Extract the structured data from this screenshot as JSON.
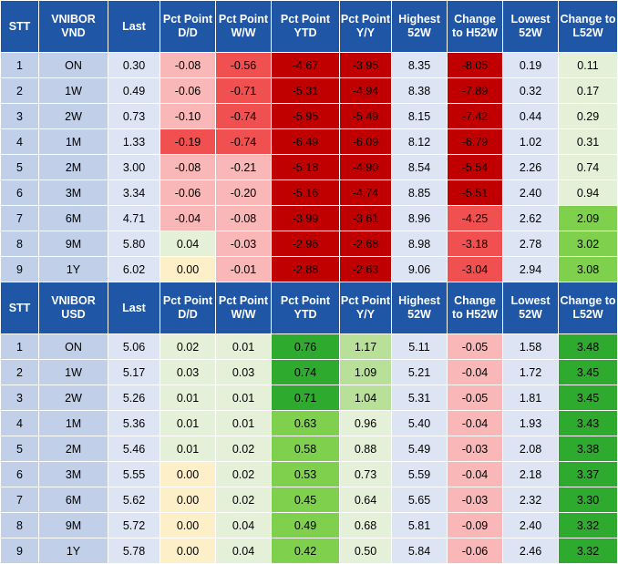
{
  "colors": {
    "header_bg": "#1f56a6",
    "label_bg": "#c2cfe9",
    "neutral_bg": "#dde4f3",
    "red_dark": "#c00000",
    "red_mid": "#f05050",
    "red_light": "#f9b7b7",
    "green_dark": "#2eaa2e",
    "green_mid": "#7fd04d",
    "green_light": "#b8e098",
    "green_pale": "#e4f1d8",
    "yellow_pale": "#fdf0c8"
  },
  "tables": [
    {
      "headers": [
        "STT",
        "VNIBOR VND",
        "Last",
        "Pct Point D/D",
        "Pct Point W/W",
        "Pct Point YTD",
        "Pct Point Y/Y",
        "Highest 52W",
        "Change to H52W",
        "Lowest 52W",
        "Change to L52W"
      ],
      "rows": [
        {
          "stt": "1",
          "tenor": "ON",
          "last": "0.30",
          "dd": "-0.08",
          "ww": "-0.56",
          "ytd": "-4.67",
          "yy": "-3.95",
          "h52": "8.35",
          "ch52": "-8.05",
          "l52": "0.19",
          "cl52": "0.11"
        },
        {
          "stt": "2",
          "tenor": "1W",
          "last": "0.49",
          "dd": "-0.06",
          "ww": "-0.71",
          "ytd": "-5.31",
          "yy": "-4.94",
          "h52": "8.38",
          "ch52": "-7.89",
          "l52": "0.32",
          "cl52": "0.17"
        },
        {
          "stt": "3",
          "tenor": "2W",
          "last": "0.73",
          "dd": "-0.10",
          "ww": "-0.74",
          "ytd": "-5.95",
          "yy": "-5.49",
          "h52": "8.15",
          "ch52": "-7.42",
          "l52": "0.44",
          "cl52": "0.29"
        },
        {
          "stt": "4",
          "tenor": "1M",
          "last": "1.33",
          "dd": "-0.19",
          "ww": "-0.74",
          "ytd": "-6.49",
          "yy": "-6.09",
          "h52": "8.12",
          "ch52": "-6.79",
          "l52": "1.02",
          "cl52": "0.31"
        },
        {
          "stt": "5",
          "tenor": "2M",
          "last": "3.00",
          "dd": "-0.08",
          "ww": "-0.21",
          "ytd": "-5.18",
          "yy": "-4.90",
          "h52": "8.54",
          "ch52": "-5.54",
          "l52": "2.26",
          "cl52": "0.74"
        },
        {
          "stt": "6",
          "tenor": "3M",
          "last": "3.34",
          "dd": "-0.06",
          "ww": "-0.20",
          "ytd": "-5.16",
          "yy": "-4.74",
          "h52": "8.85",
          "ch52": "-5.51",
          "l52": "2.40",
          "cl52": "0.94"
        },
        {
          "stt": "7",
          "tenor": "6M",
          "last": "4.71",
          "dd": "-0.04",
          "ww": "-0.08",
          "ytd": "-3.99",
          "yy": "-3.61",
          "h52": "8.96",
          "ch52": "-4.25",
          "l52": "2.62",
          "cl52": "2.09"
        },
        {
          "stt": "8",
          "tenor": "9M",
          "last": "5.80",
          "dd": "0.04",
          "ww": "-0.03",
          "ytd": "-2.96",
          "yy": "-2.68",
          "h52": "8.98",
          "ch52": "-3.18",
          "l52": "2.78",
          "cl52": "3.02"
        },
        {
          "stt": "9",
          "tenor": "1Y",
          "last": "6.02",
          "dd": "0.00",
          "ww": "-0.01",
          "ytd": "-2.88",
          "yy": "-2.63",
          "h52": "9.06",
          "ch52": "-3.04",
          "l52": "2.94",
          "cl52": "3.08"
        }
      ],
      "shading": [
        {
          "dd": "red_light",
          "ww": "red_mid",
          "ytd": "red_dark",
          "yy": "red_dark",
          "ch52": "red_dark",
          "cl52": "green_pale"
        },
        {
          "dd": "red_light",
          "ww": "red_mid",
          "ytd": "red_dark",
          "yy": "red_dark",
          "ch52": "red_dark",
          "cl52": "green_pale"
        },
        {
          "dd": "red_light",
          "ww": "red_mid",
          "ytd": "red_dark",
          "yy": "red_dark",
          "ch52": "red_dark",
          "cl52": "green_pale"
        },
        {
          "dd": "red_mid",
          "ww": "red_mid",
          "ytd": "red_dark",
          "yy": "red_dark",
          "ch52": "red_dark",
          "cl52": "green_pale"
        },
        {
          "dd": "red_light",
          "ww": "red_light",
          "ytd": "red_dark",
          "yy": "red_dark",
          "ch52": "red_dark",
          "cl52": "green_pale"
        },
        {
          "dd": "red_light",
          "ww": "red_light",
          "ytd": "red_dark",
          "yy": "red_dark",
          "ch52": "red_dark",
          "cl52": "green_pale"
        },
        {
          "dd": "red_light",
          "ww": "red_light",
          "ytd": "red_dark",
          "yy": "red_dark",
          "ch52": "red_mid",
          "cl52": "green_mid"
        },
        {
          "dd": "green_pale",
          "ww": "red_light",
          "ytd": "red_dark",
          "yy": "red_dark",
          "ch52": "red_mid",
          "cl52": "green_mid"
        },
        {
          "dd": "yellow_pale",
          "ww": "red_light",
          "ytd": "red_dark",
          "yy": "red_dark",
          "ch52": "red_mid",
          "cl52": "green_mid"
        }
      ]
    },
    {
      "headers": [
        "STT",
        "VNIBOR USD",
        "Last",
        "Pct Point D/D",
        "Pct Point W/W",
        "Pct Point YTD",
        "Pct Point Y/Y",
        "Highest 52W",
        "Change to H52W",
        "Lowest 52W",
        "Change to L52W"
      ],
      "rows": [
        {
          "stt": "1",
          "tenor": "ON",
          "last": "5.06",
          "dd": "0.02",
          "ww": "0.01",
          "ytd": "0.76",
          "yy": "1.17",
          "h52": "5.11",
          "ch52": "-0.05",
          "l52": "1.58",
          "cl52": "3.48"
        },
        {
          "stt": "2",
          "tenor": "1W",
          "last": "5.17",
          "dd": "0.03",
          "ww": "0.03",
          "ytd": "0.74",
          "yy": "1.09",
          "h52": "5.21",
          "ch52": "-0.04",
          "l52": "1.72",
          "cl52": "3.45"
        },
        {
          "stt": "3",
          "tenor": "2W",
          "last": "5.26",
          "dd": "0.01",
          "ww": "0.01",
          "ytd": "0.71",
          "yy": "1.04",
          "h52": "5.31",
          "ch52": "-0.05",
          "l52": "1.81",
          "cl52": "3.45"
        },
        {
          "stt": "4",
          "tenor": "1M",
          "last": "5.36",
          "dd": "0.01",
          "ww": "0.01",
          "ytd": "0.63",
          "yy": "0.96",
          "h52": "5.40",
          "ch52": "-0.04",
          "l52": "1.93",
          "cl52": "3.43"
        },
        {
          "stt": "5",
          "tenor": "2M",
          "last": "5.46",
          "dd": "0.01",
          "ww": "0.02",
          "ytd": "0.58",
          "yy": "0.88",
          "h52": "5.49",
          "ch52": "-0.03",
          "l52": "2.08",
          "cl52": "3.38"
        },
        {
          "stt": "6",
          "tenor": "3M",
          "last": "5.55",
          "dd": "0.00",
          "ww": "0.02",
          "ytd": "0.53",
          "yy": "0.73",
          "h52": "5.59",
          "ch52": "-0.04",
          "l52": "2.18",
          "cl52": "3.37"
        },
        {
          "stt": "7",
          "tenor": "6M",
          "last": "5.62",
          "dd": "0.00",
          "ww": "0.02",
          "ytd": "0.45",
          "yy": "0.64",
          "h52": "5.65",
          "ch52": "-0.03",
          "l52": "2.32",
          "cl52": "3.30"
        },
        {
          "stt": "8",
          "tenor": "9M",
          "last": "5.72",
          "dd": "0.00",
          "ww": "0.04",
          "ytd": "0.49",
          "yy": "0.68",
          "h52": "5.81",
          "ch52": "-0.09",
          "l52": "2.40",
          "cl52": "3.32"
        },
        {
          "stt": "9",
          "tenor": "1Y",
          "last": "5.78",
          "dd": "0.00",
          "ww": "0.04",
          "ytd": "0.42",
          "yy": "0.50",
          "h52": "5.84",
          "ch52": "-0.06",
          "l52": "2.46",
          "cl52": "3.32"
        }
      ],
      "shading": [
        {
          "dd": "green_pale",
          "ww": "green_pale",
          "ytd": "green_dark",
          "yy": "green_light",
          "ch52": "red_light",
          "cl52": "green_dark"
        },
        {
          "dd": "green_pale",
          "ww": "green_pale",
          "ytd": "green_dark",
          "yy": "green_light",
          "ch52": "red_light",
          "cl52": "green_dark"
        },
        {
          "dd": "green_pale",
          "ww": "green_pale",
          "ytd": "green_dark",
          "yy": "green_light",
          "ch52": "red_light",
          "cl52": "green_dark"
        },
        {
          "dd": "green_pale",
          "ww": "green_pale",
          "ytd": "green_mid",
          "yy": "green_pale",
          "ch52": "red_light",
          "cl52": "green_dark"
        },
        {
          "dd": "green_pale",
          "ww": "green_pale",
          "ytd": "green_mid",
          "yy": "green_pale",
          "ch52": "red_light",
          "cl52": "green_dark"
        },
        {
          "dd": "yellow_pale",
          "ww": "green_pale",
          "ytd": "green_mid",
          "yy": "green_pale",
          "ch52": "red_light",
          "cl52": "green_dark"
        },
        {
          "dd": "yellow_pale",
          "ww": "green_pale",
          "ytd": "green_mid",
          "yy": "green_pale",
          "ch52": "red_light",
          "cl52": "green_dark"
        },
        {
          "dd": "yellow_pale",
          "ww": "green_pale",
          "ytd": "green_mid",
          "yy": "green_pale",
          "ch52": "red_light",
          "cl52": "green_dark"
        },
        {
          "dd": "yellow_pale",
          "ww": "green_pale",
          "ytd": "green_mid",
          "yy": "green_pale",
          "ch52": "red_light",
          "cl52": "green_dark"
        }
      ]
    }
  ]
}
